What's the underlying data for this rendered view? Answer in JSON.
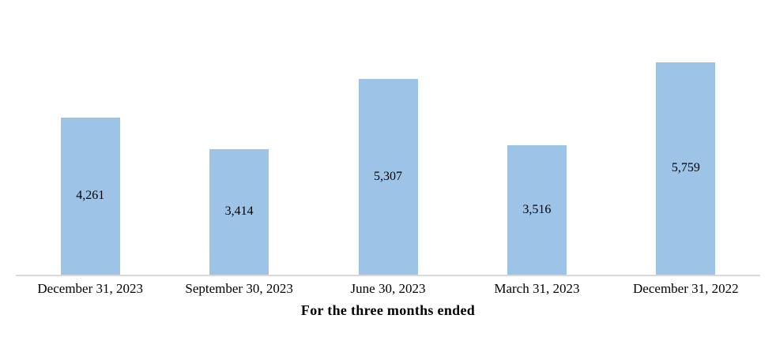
{
  "chart_data": {
    "type": "bar",
    "categories": [
      "December 31, 2023",
      "September 30, 2023",
      "June 30, 2023",
      "March 31, 2023",
      "December 31, 2022"
    ],
    "values": [
      4261,
      3414,
      5307,
      3516,
      5759
    ],
    "value_labels": [
      "4,261",
      "3,414",
      "5,307",
      "3,516",
      "5,759"
    ],
    "title": "",
    "xlabel": "For the three months ended",
    "ylabel": "",
    "ylim": [
      0,
      7000
    ],
    "grid": false,
    "legend": false,
    "value_label_position": "inside-center",
    "bar_color": "#9DC3E6",
    "axis_line_color": "#D9D9D9",
    "text_color": "#000000",
    "background_color": "#FFFFFF"
  }
}
